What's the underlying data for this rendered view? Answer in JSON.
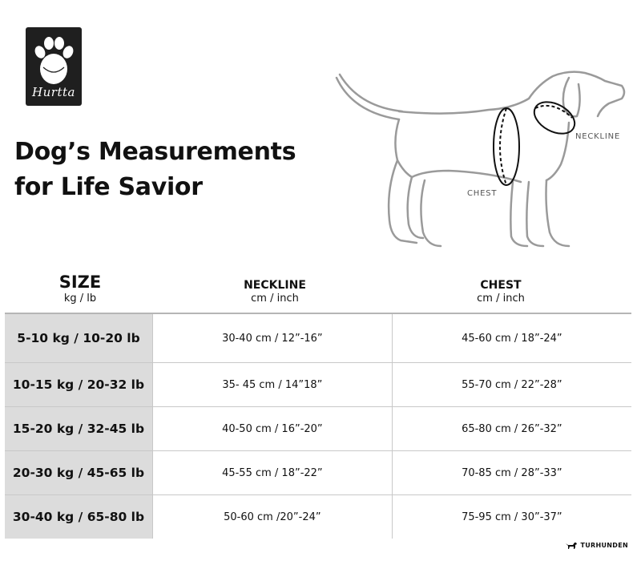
{
  "brand": {
    "logo_text": "Hurtta",
    "logo_icon": "paw-print-icon"
  },
  "title": {
    "line1": "Dog’s Measurements",
    "line2": "for Life Savior"
  },
  "figure": {
    "neck_label": "NECKLINE",
    "chest_label": "CHEST"
  },
  "table": {
    "headers": {
      "size": {
        "title": "SIZE",
        "unit": "kg / lb"
      },
      "neck": {
        "title": "NECKLINE",
        "unit": "cm / inch"
      },
      "chest": {
        "title": "CHEST",
        "unit": "cm / inch"
      }
    },
    "rows": [
      {
        "size": "5-10 kg / 10-20 lb",
        "neck": "30-40 cm / 12”-16”",
        "chest": "45-60 cm / 18”-24”"
      },
      {
        "size": "10-15 kg / 20-32 lb",
        "neck": "35- 45 cm / 14”18”",
        "chest": "55-70 cm / 22”-28”"
      },
      {
        "size": "15-20 kg /  32-45 lb",
        "neck": "40-50 cm / 16”-20”",
        "chest": "65-80 cm / 26”-32”"
      },
      {
        "size": "20-30 kg / 45-65 lb",
        "neck": "45-55 cm / 18”-22”",
        "chest": "70-85 cm / 28”-33”"
      },
      {
        "size": "30-40 kg / 65-80 lb",
        "neck": "50-60 cm /20”-24”",
        "chest": "75-95 cm / 30”-37”"
      }
    ]
  },
  "watermark": {
    "text": "TURHUNDEN",
    "icon": "dog-silhouette-icon"
  },
  "colors": {
    "logo_bg": "#1f1f1f",
    "size_column_bg": "#dcdcdc",
    "dog_outline": "#9a9a9a"
  }
}
